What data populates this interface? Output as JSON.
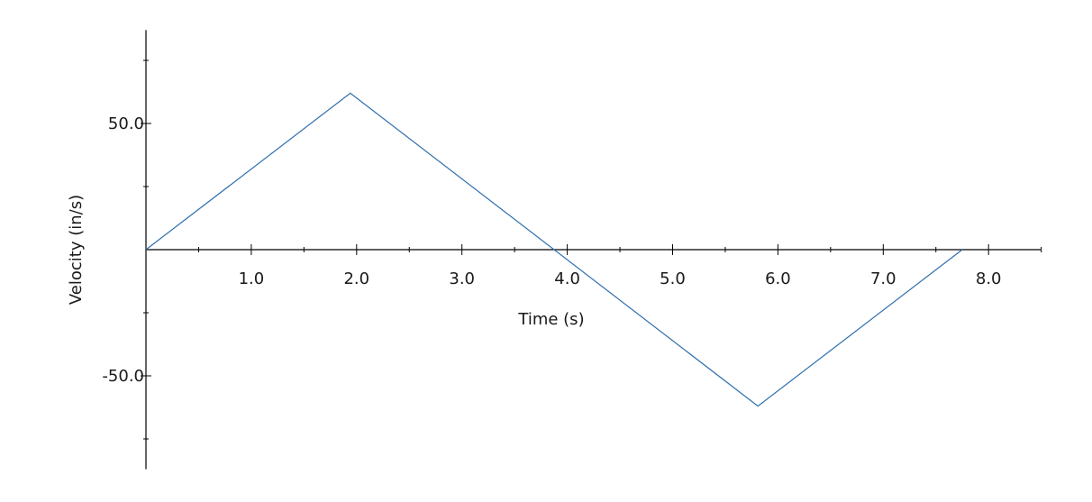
{
  "chart_data": {
    "type": "line",
    "xlabel": "Time (s)",
    "ylabel": "Velocity (in/s)",
    "xlim": [
      0,
      8.5
    ],
    "ylim": [
      -87,
      87
    ],
    "x_ticks": [
      1.0,
      2.0,
      3.0,
      4.0,
      5.0,
      6.0,
      7.0,
      8.0
    ],
    "x_tick_labels": [
      "1.0",
      "2.0",
      "3.0",
      "4.0",
      "5.0",
      "6.0",
      "7.0",
      "8.0"
    ],
    "y_ticks": [
      50.0,
      -50.0
    ],
    "y_tick_labels": [
      "50.0",
      "-50.0"
    ],
    "grid": false,
    "series": [
      {
        "color": "#2f6fab",
        "x": [
          0.0,
          1.94,
          5.81,
          7.75
        ],
        "y": [
          0.0,
          62.0,
          -62.0,
          0.0
        ]
      }
    ]
  }
}
